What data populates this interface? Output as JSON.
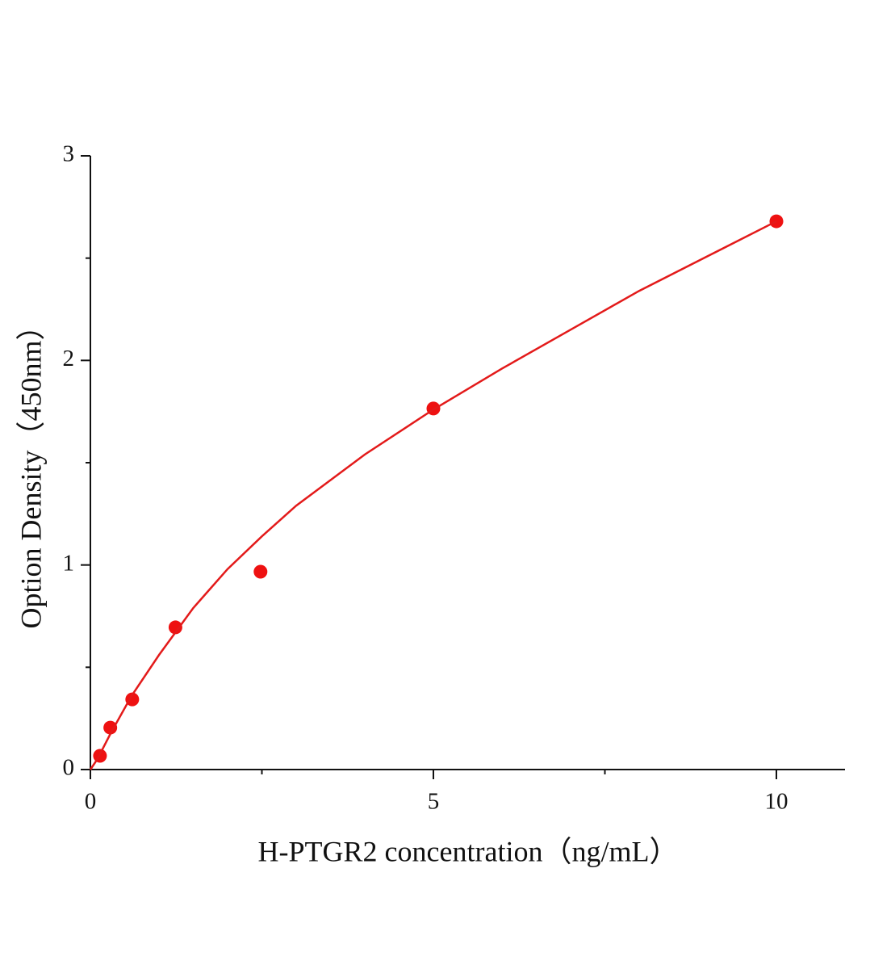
{
  "chart_data": {
    "type": "scatter",
    "x_label": "H-PTGR2 concentration（ng/mL）",
    "y_label": "Option Density（450nm）",
    "series": [
      {
        "color": "#ee1111",
        "mode": "markers",
        "x": [
          0.14,
          0.29,
          0.61,
          1.24,
          2.48,
          5,
          10
        ],
        "values": [
          0.067,
          0.205,
          0.343,
          0.695,
          0.967,
          1.765,
          2.68
        ]
      },
      {
        "color": "#e31a1a",
        "mode": "line",
        "x": [
          0,
          0.1,
          0.3,
          0.6,
          1,
          1.5,
          2,
          2.5,
          3,
          4,
          5,
          6,
          7,
          8,
          9,
          10
        ],
        "values": [
          0,
          0.05,
          0.18,
          0.36,
          0.56,
          0.79,
          0.98,
          1.14,
          1.29,
          1.54,
          1.76,
          1.96,
          2.15,
          2.34,
          2.51,
          2.68
        ]
      }
    ],
    "xlim": [
      0,
      11
    ],
    "xticks": [
      0,
      5,
      10
    ],
    "xminor_ticks": [
      2.5,
      7.5
    ],
    "ylim": [
      0,
      3
    ],
    "yticks": [
      0,
      1,
      2,
      3
    ],
    "yminor_ticks": [
      0.5,
      1.5,
      2.5
    ]
  }
}
